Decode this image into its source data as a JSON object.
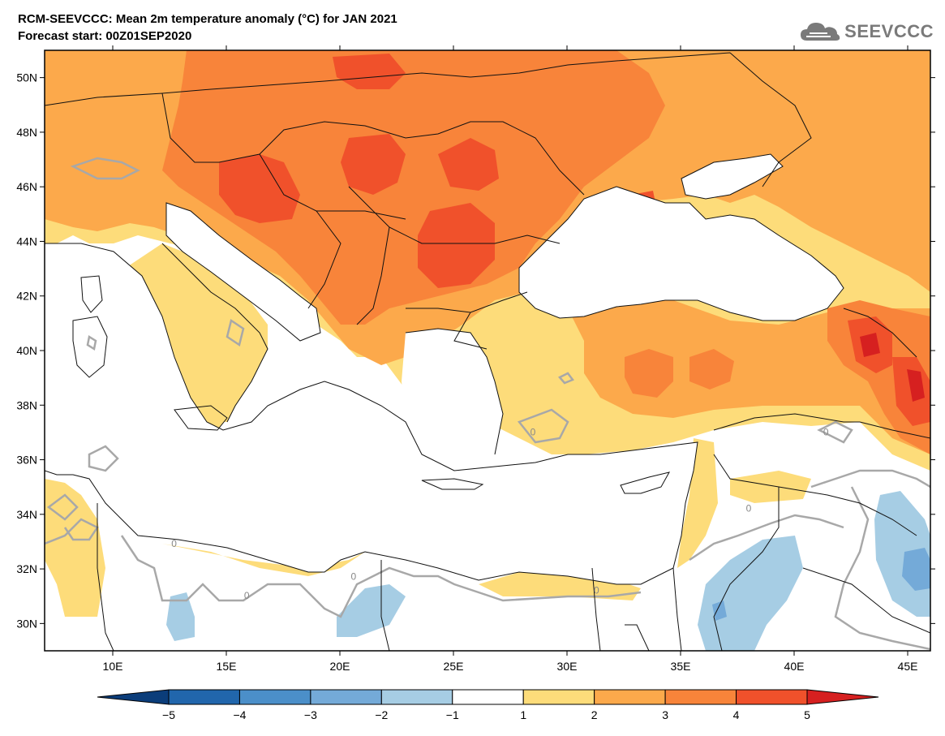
{
  "header": {
    "title": "RCM-SEEVCCC: Mean 2m temperature anomaly (°C) for JAN 2021",
    "subtitle": "Forecast start: 00Z01SEP2020",
    "logo_text": "SEEVCCC",
    "logo_icon": "cloud-icon"
  },
  "map": {
    "lon_range": [
      7,
      46
    ],
    "lat_range": [
      29,
      51
    ],
    "lat_ticks": [
      {
        "value": 50,
        "label": "50N"
      },
      {
        "value": 48,
        "label": "48N"
      },
      {
        "value": 46,
        "label": "46N"
      },
      {
        "value": 44,
        "label": "44N"
      },
      {
        "value": 42,
        "label": "42N"
      },
      {
        "value": 40,
        "label": "40N"
      },
      {
        "value": 38,
        "label": "38N"
      },
      {
        "value": 36,
        "label": "36N"
      },
      {
        "value": 34,
        "label": "34N"
      },
      {
        "value": 32,
        "label": "32N"
      },
      {
        "value": 30,
        "label": "30N"
      }
    ],
    "lon_ticks": [
      {
        "value": 10,
        "label": "10E"
      },
      {
        "value": 15,
        "label": "15E"
      },
      {
        "value": 20,
        "label": "20E"
      },
      {
        "value": 25,
        "label": "25E"
      },
      {
        "value": 30,
        "label": "30E"
      },
      {
        "value": 35,
        "label": "35E"
      },
      {
        "value": 40,
        "label": "40E"
      },
      {
        "value": 45,
        "label": "45E"
      }
    ],
    "contour_labels": [
      {
        "text": "0",
        "lon": 12.7,
        "lat": 32.8
      },
      {
        "text": "0",
        "lon": 15.9,
        "lat": 30.9
      },
      {
        "text": "0",
        "lon": 20.6,
        "lat": 31.6
      },
      {
        "text": "0",
        "lon": 31.3,
        "lat": 31.1
      },
      {
        "text": "0",
        "lon": 28.5,
        "lat": 36.9
      },
      {
        "text": "0",
        "lon": 38.0,
        "lat": 34.1
      },
      {
        "text": "0",
        "lon": 41.4,
        "lat": 36.9
      }
    ]
  },
  "colorbar": {
    "levels": [
      "−5",
      "−4",
      "−3",
      "−2",
      "−1",
      "1",
      "2",
      "3",
      "4",
      "5"
    ],
    "colors": [
      "#0b3d7a",
      "#2166ac",
      "#4b8fc9",
      "#74aad8",
      "#a6cde4",
      "#ffffff",
      "#fddc7a",
      "#fca94b",
      "#f8843a",
      "#f0512b",
      "#d62020"
    ]
  },
  "legend_colors": {
    "anom_m2": "#74aad8",
    "anom_m1": "#a6cde4",
    "anom_1": "#fddc7a",
    "anom_2": "#fca94b",
    "anom_3": "#f8843a",
    "anom_4": "#f0512b",
    "anom_5": "#d62020"
  }
}
